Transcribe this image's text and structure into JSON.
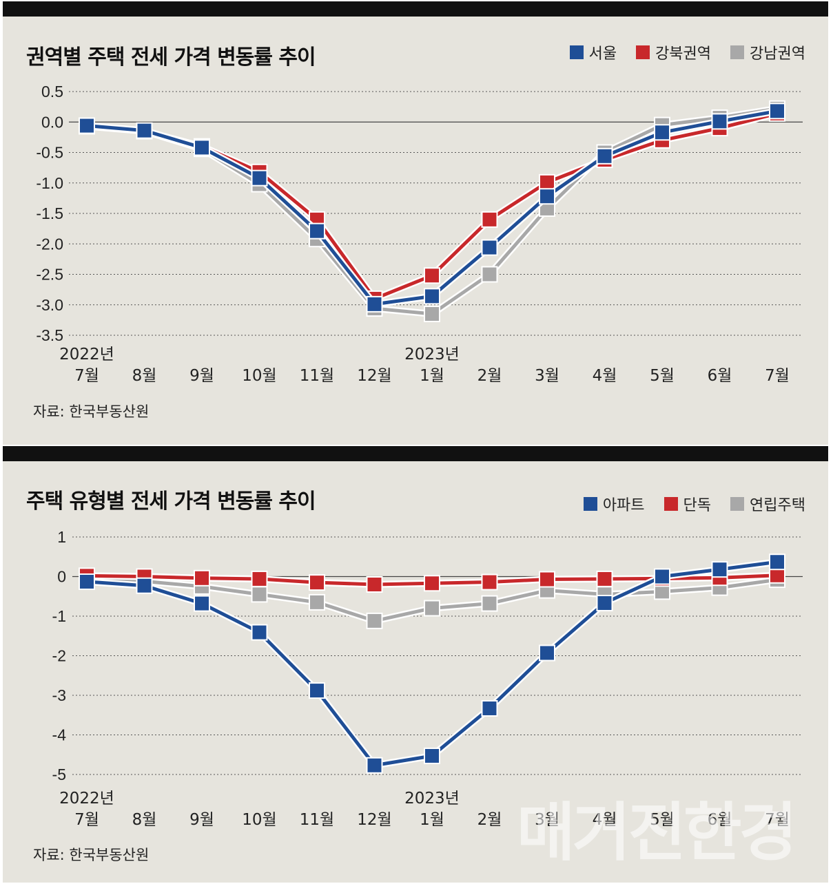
{
  "charts": [
    {
      "title": "권역별 주택 전세 가격 변동률 추이",
      "source": "자료: 한국부동산원",
      "legend": [
        {
          "label": "서울",
          "color": "#1f4e96"
        },
        {
          "label": "강북권역",
          "color": "#c8282b"
        },
        {
          "label": "강남권역",
          "color": "#a8a8a8"
        }
      ]
    },
    {
      "title": "주택 유형별 전세 가격 변동률 추이",
      "source": "자료: 한국부동산원",
      "legend": [
        {
          "label": "아파트",
          "color": "#1f4e96"
        },
        {
          "label": "단독",
          "color": "#c8282b"
        },
        {
          "label": "연립주택",
          "color": "#a8a8a8"
        }
      ]
    }
  ],
  "chart_data": [
    {
      "type": "line",
      "title": "권역별 주택 전세 가격 변동률 추이",
      "categories": [
        "7월",
        "8월",
        "9월",
        "10월",
        "11월",
        "12월",
        "1월",
        "2월",
        "3월",
        "4월",
        "5월",
        "6월",
        "7월"
      ],
      "year_labels": [
        {
          "index": 0,
          "label": "2022년"
        },
        {
          "index": 6,
          "label": "2023년"
        }
      ],
      "yticks": [
        "0.5",
        "0.0",
        "-0.5",
        "-1.0",
        "-1.5",
        "-2.0",
        "-2.5",
        "-3.0",
        "-3.5"
      ],
      "ylim": [
        -3.5,
        0.5
      ],
      "series": [
        {
          "name": "강남권역",
          "color": "#a8a8a8",
          "values": [
            -0.07,
            -0.15,
            -0.44,
            -1.02,
            -1.92,
            -3.06,
            -3.15,
            -2.5,
            -1.42,
            -0.5,
            -0.05,
            0.07,
            0.22
          ]
        },
        {
          "name": "강북권역",
          "color": "#c8282b",
          "values": [
            -0.06,
            -0.15,
            -0.4,
            -0.82,
            -1.6,
            -2.9,
            -2.52,
            -1.6,
            -0.99,
            -0.62,
            -0.3,
            -0.1,
            0.14
          ]
        },
        {
          "name": "서울",
          "color": "#1f4e96",
          "values": [
            -0.06,
            -0.14,
            -0.42,
            -0.92,
            -1.79,
            -2.99,
            -2.86,
            -2.06,
            -1.22,
            -0.56,
            -0.17,
            0.01,
            0.18
          ]
        }
      ]
    },
    {
      "type": "line",
      "title": "주택 유형별 전세 가격 변동률 추이",
      "categories": [
        "7월",
        "8월",
        "9월",
        "10월",
        "11월",
        "12월",
        "1월",
        "2월",
        "3월",
        "4월",
        "5월",
        "6월",
        "7월"
      ],
      "year_labels": [
        {
          "index": 0,
          "label": "2022년"
        },
        {
          "index": 6,
          "label": "2023년"
        }
      ],
      "yticks": [
        "1",
        "0",
        "-1",
        "-2",
        "-3",
        "-4",
        "-5"
      ],
      "ylim": [
        -5,
        1
      ],
      "series": [
        {
          "name": "연립주택",
          "color": "#a8a8a8",
          "values": [
            -0.1,
            -0.12,
            -0.25,
            -0.45,
            -0.65,
            -1.12,
            -0.8,
            -0.68,
            -0.35,
            -0.45,
            -0.38,
            -0.28,
            -0.08
          ]
        },
        {
          "name": "단독",
          "color": "#c8282b",
          "values": [
            0.02,
            0.0,
            -0.04,
            -0.06,
            -0.15,
            -0.2,
            -0.17,
            -0.14,
            -0.07,
            -0.06,
            -0.05,
            -0.03,
            0.03
          ]
        },
        {
          "name": "아파트",
          "color": "#1f4e96",
          "values": [
            -0.13,
            -0.23,
            -0.68,
            -1.41,
            -2.88,
            -4.77,
            -4.53,
            -3.33,
            -1.93,
            -0.67,
            0.0,
            0.18,
            0.37
          ]
        }
      ]
    }
  ],
  "watermark": "매거진한경"
}
